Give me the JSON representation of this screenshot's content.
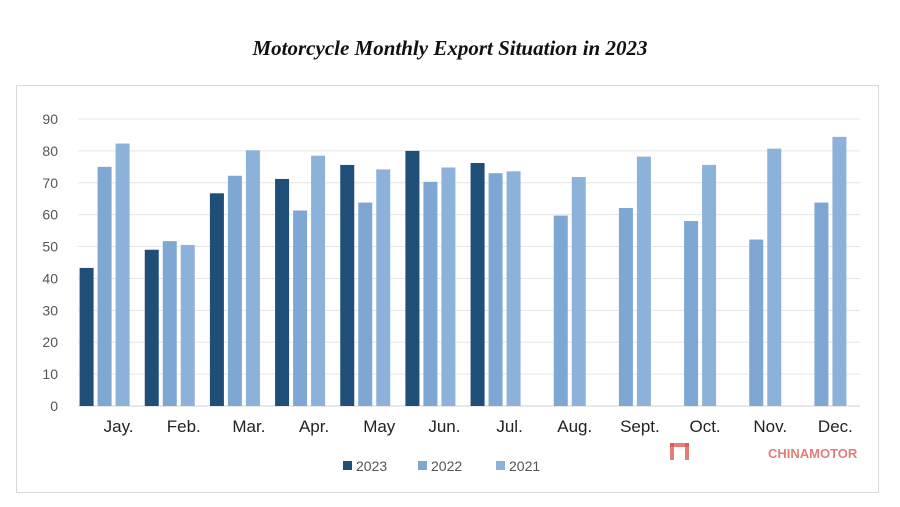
{
  "chart_data": {
    "type": "bar",
    "title": "Motorcycle Monthly Export Situation in 2023",
    "xlabel": "",
    "ylabel": "",
    "ylim": [
      0,
      90
    ],
    "yticks": [
      0,
      10,
      20,
      30,
      40,
      50,
      60,
      70,
      80,
      90
    ],
    "grid": true,
    "legend_position": "bottom",
    "categories": [
      "Jay.",
      "Feb.",
      "Mar.",
      "Apr.",
      "May",
      "Jun.",
      "Jul.",
      "Aug.",
      "Sept.",
      "Oct.",
      "Nov.",
      "Dec."
    ],
    "series": [
      {
        "name": "2023",
        "color": "#1f4e79",
        "values": [
          43.3,
          49,
          66.7,
          71.2,
          75.6,
          80,
          76.2,
          null,
          null,
          null,
          null,
          null
        ]
      },
      {
        "name": "2022",
        "color": "#7fa7d3",
        "values": [
          75,
          51.7,
          72.2,
          61.3,
          63.8,
          70.3,
          73,
          59.7,
          62.1,
          58,
          52.2,
          63.8
        ]
      },
      {
        "name": "2021",
        "color": "#8db2da",
        "values": [
          82.3,
          50.5,
          80.2,
          78.5,
          74.2,
          74.8,
          73.6,
          71.8,
          78.2,
          75.6,
          80.7,
          84.4
        ]
      }
    ]
  },
  "watermark": "CHINAMOTOR"
}
